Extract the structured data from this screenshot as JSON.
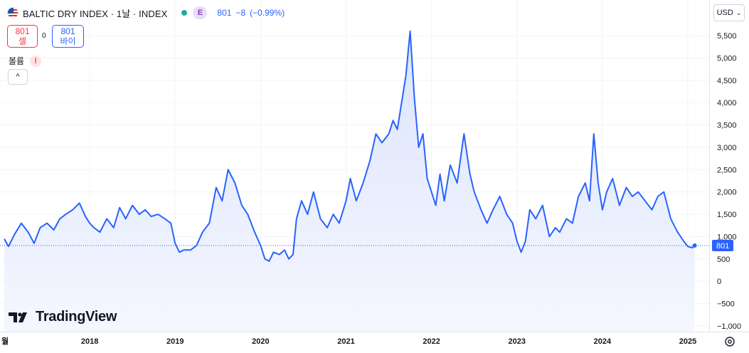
{
  "header": {
    "title": "BALTIC DRY INDEX · 1날 · INDEX",
    "badge": "E",
    "last": "801",
    "change": "−8",
    "change_pct": "(−0.99%)"
  },
  "trade": {
    "sell_price": "801",
    "sell_label": "셀",
    "spread": "0",
    "buy_price": "801",
    "buy_label": "바이"
  },
  "volume_label": "볼륨",
  "warning_symbol": "!",
  "collapse_symbol": "^",
  "currency": "USD",
  "currency_chevron": "⌄",
  "last_price_tag": "801",
  "branding": "TradingView",
  "colors": {
    "line": "#2962ff",
    "area_top": "#dbe4fb",
    "area_bottom": "#f5f7ff",
    "grid": "#f0f3fa",
    "axis_text": "#131722",
    "tag_bg": "#2962ff"
  },
  "chart_data": {
    "type": "area",
    "xlabel": "",
    "ylabel": "",
    "grid": true,
    "price_axis": "right",
    "last_value": 801,
    "ylim": [
      -1000,
      5600
    ],
    "y_ticks": [
      5500,
      5000,
      4500,
      4000,
      3500,
      3000,
      2500,
      2000,
      1500,
      1000,
      500,
      0,
      -500,
      -1000
    ],
    "y_tick_labels": [
      "5,500",
      "5,000",
      "4,500",
      "4,000",
      "3,500",
      "3,000",
      "2,500",
      "2,000",
      "1,500",
      "1,000",
      "500",
      "0",
      "−500",
      "−1,000"
    ],
    "x_ticks": [
      "월",
      "2018",
      "2019",
      "2020",
      "2021",
      "2022",
      "2023",
      "2024",
      "2025"
    ],
    "x_tick_values": [
      2017.0,
      2018.0,
      2019.0,
      2020.0,
      2021.0,
      2022.0,
      2023.0,
      2024.0,
      2025.0
    ],
    "series": [
      {
        "x": [
          2017.0,
          2017.05,
          2017.12,
          2017.2,
          2017.28,
          2017.35,
          2017.42,
          2017.5,
          2017.58,
          2017.65,
          2017.72,
          2017.8,
          2017.88,
          2017.95,
          2018.0,
          2018.05,
          2018.12,
          2018.2,
          2018.28,
          2018.35,
          2018.42,
          2018.5,
          2018.58,
          2018.65,
          2018.72,
          2018.8,
          2018.88,
          2018.95,
          2019.0,
          2019.05,
          2019.1,
          2019.18,
          2019.25,
          2019.32,
          2019.4,
          2019.48,
          2019.55,
          2019.62,
          2019.7,
          2019.78,
          2019.85,
          2019.93,
          2020.0,
          2020.05,
          2020.1,
          2020.15,
          2020.22,
          2020.28,
          2020.33,
          2020.38,
          2020.42,
          2020.48,
          2020.55,
          2020.62,
          2020.7,
          2020.78,
          2020.85,
          2020.92,
          2021.0,
          2021.05,
          2021.12,
          2021.2,
          2021.28,
          2021.35,
          2021.42,
          2021.5,
          2021.55,
          2021.6,
          2021.65,
          2021.7,
          2021.75,
          2021.8,
          2021.85,
          2021.9,
          2021.95,
          2022.0,
          2022.05,
          2022.1,
          2022.15,
          2022.22,
          2022.3,
          2022.38,
          2022.45,
          2022.5,
          2022.58,
          2022.65,
          2022.72,
          2022.8,
          2022.88,
          2022.95,
          2023.0,
          2023.05,
          2023.1,
          2023.15,
          2023.22,
          2023.3,
          2023.38,
          2023.45,
          2023.5,
          2023.58,
          2023.65,
          2023.72,
          2023.8,
          2023.85,
          2023.9,
          2023.95,
          2024.0,
          2024.05,
          2024.12,
          2024.2,
          2024.28,
          2024.35,
          2024.42,
          2024.5,
          2024.58,
          2024.65,
          2024.72,
          2024.8,
          2024.88,
          2024.95,
          2025.0,
          2025.05,
          2025.08
        ],
        "values": [
          950,
          780,
          1050,
          1300,
          1100,
          850,
          1200,
          1300,
          1150,
          1400,
          1500,
          1600,
          1750,
          1450,
          1300,
          1200,
          1100,
          1400,
          1200,
          1650,
          1400,
          1700,
          1500,
          1600,
          1450,
          1500,
          1400,
          1300,
          850,
          650,
          700,
          700,
          800,
          1100,
          1300,
          2100,
          1800,
          2500,
          2200,
          1700,
          1500,
          1100,
          800,
          500,
          450,
          650,
          600,
          700,
          500,
          600,
          1400,
          1800,
          1500,
          2000,
          1400,
          1200,
          1500,
          1300,
          1800,
          2300,
          1800,
          2200,
          2700,
          3300,
          3100,
          3300,
          3600,
          3400,
          4000,
          4600,
          5600,
          4100,
          3000,
          3300,
          2300,
          2000,
          1700,
          2400,
          1800,
          2600,
          2200,
          3300,
          2400,
          2000,
          1600,
          1300,
          1600,
          1900,
          1500,
          1300,
          900,
          650,
          900,
          1600,
          1400,
          1700,
          1000,
          1200,
          1100,
          1400,
          1300,
          1900,
          2200,
          1800,
          3300,
          2200,
          1600,
          2000,
          2300,
          1700,
          2100,
          1900,
          2000,
          1800,
          1600,
          1900,
          2000,
          1400,
          1100,
          900,
          780,
          750,
          801
        ]
      }
    ]
  }
}
